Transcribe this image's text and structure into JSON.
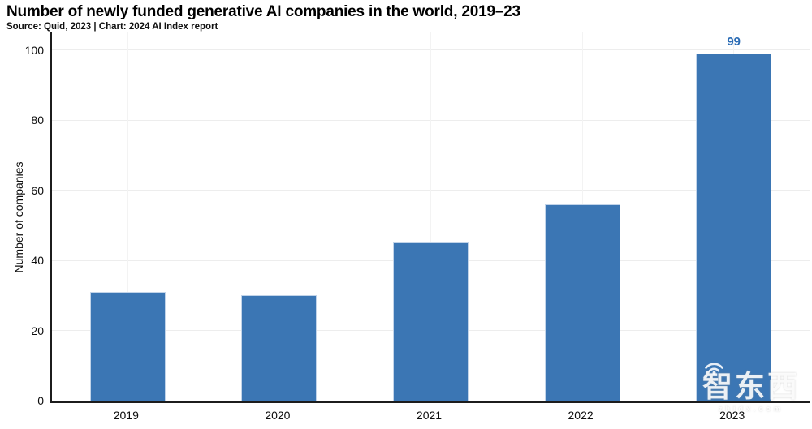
{
  "header": {
    "title": "Number of newly funded generative AI companies in the world, 2019–23",
    "source_line": "Source: Quid, 2023 | Chart: 2024 AI Index report"
  },
  "chart_data": {
    "type": "bar",
    "title": "Number of newly funded generative AI companies in the world, 2019–23",
    "subtitle": "Source: Quid, 2023 | Chart: 2024 AI Index report",
    "categories": [
      "2019",
      "2020",
      "2021",
      "2022",
      "2023"
    ],
    "values": [
      31,
      30,
      45,
      56,
      99
    ],
    "value_labels": [
      {
        "category": "2023",
        "text": "99"
      }
    ],
    "xlabel": "",
    "ylabel": "Number of companies",
    "ylim": [
      0,
      105
    ],
    "yticks": [
      0,
      20,
      40,
      60,
      80,
      100
    ],
    "grid": true,
    "legend": "none",
    "colors": {
      "bar": "#3b76b4",
      "value_label": "#2b6cb5",
      "axis": "#1c1c1c",
      "hgrid": "#ededed",
      "vgrid": "#f3f3f3"
    }
  },
  "watermark": {
    "text": "智东西",
    "domain": "zhidx.com",
    "icon": "wifi-icon"
  }
}
